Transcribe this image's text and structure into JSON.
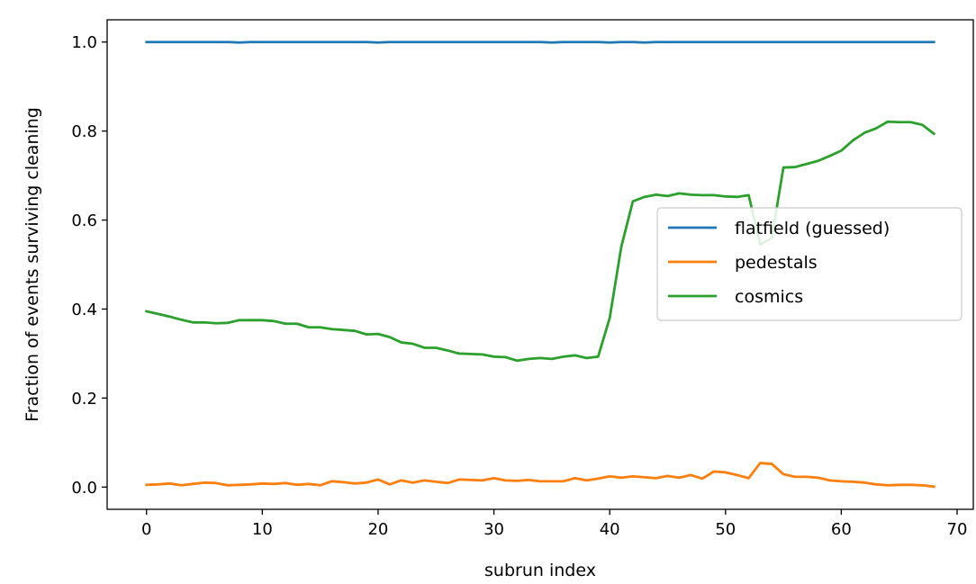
{
  "chart_data": {
    "type": "line",
    "xlabel": "subrun index",
    "ylabel": "Fraction of events surviving cleaning",
    "xlim": [
      -3.4,
      71.4
    ],
    "ylim": [
      -0.05,
      1.05
    ],
    "xticks": [
      0,
      10,
      20,
      30,
      40,
      50,
      60,
      70
    ],
    "yticks": [
      0.0,
      0.2,
      0.4,
      0.6,
      0.8,
      1.0
    ],
    "xtick_labels": [
      "0",
      "10",
      "20",
      "30",
      "40",
      "50",
      "60",
      "70"
    ],
    "ytick_labels": [
      "0.0",
      "0.2",
      "0.4",
      "0.6",
      "0.8",
      "1.0"
    ],
    "grid": false,
    "legend_position": "center-right",
    "x": [
      0,
      1,
      2,
      3,
      4,
      5,
      6,
      7,
      8,
      9,
      10,
      11,
      12,
      13,
      14,
      15,
      16,
      17,
      18,
      19,
      20,
      21,
      22,
      23,
      24,
      25,
      26,
      27,
      28,
      29,
      30,
      31,
      32,
      33,
      34,
      35,
      36,
      37,
      38,
      39,
      40,
      41,
      42,
      43,
      44,
      45,
      46,
      47,
      48,
      49,
      50,
      51,
      52,
      53,
      54,
      55,
      56,
      57,
      58,
      59,
      60,
      61,
      62,
      63,
      64,
      65,
      66,
      67,
      68
    ],
    "series": [
      {
        "name": "flatfield (guessed)",
        "color": "#1f77b4",
        "values": [
          1.0,
          1.0,
          1.0,
          1.0,
          1.0,
          1.0,
          1.0,
          1.0,
          0.999,
          1.0,
          1.0,
          1.0,
          1.0,
          1.0,
          1.0,
          1.0,
          1.0,
          1.0,
          1.0,
          1.0,
          0.999,
          1.0,
          1.0,
          1.0,
          1.0,
          1.0,
          1.0,
          1.0,
          1.0,
          1.0,
          1.0,
          1.0,
          1.0,
          1.0,
          1.0,
          0.999,
          1.0,
          1.0,
          1.0,
          1.0,
          0.999,
          1.0,
          1.0,
          0.999,
          1.0,
          1.0,
          1.0,
          1.0,
          1.0,
          1.0,
          1.0,
          1.0,
          1.0,
          1.0,
          1.0,
          1.0,
          1.0,
          1.0,
          1.0,
          1.0,
          1.0,
          1.0,
          1.0,
          1.0,
          1.0,
          1.0,
          1.0,
          1.0,
          1.0
        ]
      },
      {
        "name": "pedestals",
        "color": "#ff7f0e",
        "values": [
          0.005,
          0.006,
          0.008,
          0.004,
          0.007,
          0.01,
          0.009,
          0.004,
          0.005,
          0.006,
          0.008,
          0.007,
          0.009,
          0.005,
          0.007,
          0.004,
          0.013,
          0.011,
          0.008,
          0.01,
          0.017,
          0.006,
          0.015,
          0.01,
          0.015,
          0.012,
          0.009,
          0.017,
          0.016,
          0.015,
          0.02,
          0.015,
          0.014,
          0.016,
          0.013,
          0.013,
          0.013,
          0.02,
          0.015,
          0.019,
          0.024,
          0.021,
          0.024,
          0.022,
          0.02,
          0.025,
          0.021,
          0.027,
          0.019,
          0.035,
          0.033,
          0.027,
          0.02,
          0.054,
          0.052,
          0.029,
          0.023,
          0.023,
          0.021,
          0.015,
          0.013,
          0.012,
          0.01,
          0.006,
          0.004,
          0.005,
          0.005,
          0.004,
          0.001
        ]
      },
      {
        "name": "cosmics",
        "color": "#2ca02c",
        "values": [
          0.395,
          0.389,
          0.383,
          0.376,
          0.37,
          0.37,
          0.368,
          0.369,
          0.375,
          0.375,
          0.375,
          0.373,
          0.367,
          0.367,
          0.359,
          0.359,
          0.355,
          0.353,
          0.351,
          0.343,
          0.344,
          0.337,
          0.325,
          0.322,
          0.313,
          0.313,
          0.307,
          0.3,
          0.299,
          0.298,
          0.293,
          0.292,
          0.284,
          0.288,
          0.29,
          0.288,
          0.293,
          0.296,
          0.29,
          0.293,
          0.38,
          0.54,
          0.642,
          0.652,
          0.657,
          0.654,
          0.66,
          0.657,
          0.656,
          0.656,
          0.653,
          0.652,
          0.656,
          0.545,
          0.56,
          0.718,
          0.719,
          0.726,
          0.733,
          0.744,
          0.756,
          0.779,
          0.796,
          0.806,
          0.821,
          0.82,
          0.82,
          0.814,
          0.794
        ]
      }
    ]
  }
}
